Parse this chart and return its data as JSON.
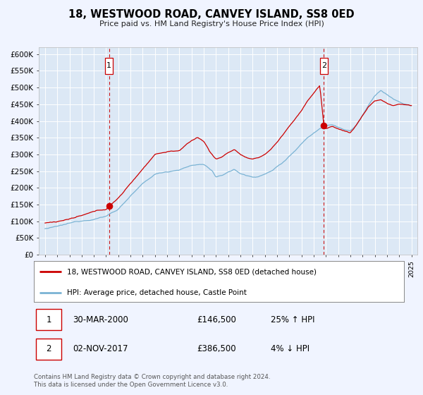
{
  "title": "18, WESTWOOD ROAD, CANVEY ISLAND, SS8 0ED",
  "subtitle": "Price paid vs. HM Land Registry's House Price Index (HPI)",
  "ylabel_ticks": [
    "£0",
    "£50K",
    "£100K",
    "£150K",
    "£200K",
    "£250K",
    "£300K",
    "£350K",
    "£400K",
    "£450K",
    "£500K",
    "£550K",
    "£600K"
  ],
  "ytick_values": [
    0,
    50000,
    100000,
    150000,
    200000,
    250000,
    300000,
    350000,
    400000,
    450000,
    500000,
    550000,
    600000
  ],
  "xlim": [
    1994.5,
    2025.5
  ],
  "ylim": [
    0,
    620000
  ],
  "sale1_x": 2000.25,
  "sale1_y": 146500,
  "sale1_label": "1",
  "sale1_date": "30-MAR-2000",
  "sale1_price": "£146,500",
  "sale1_hpi": "25% ↑ HPI",
  "sale2_x": 2017.83,
  "sale2_y": 386500,
  "sale2_label": "2",
  "sale2_date": "02-NOV-2017",
  "sale2_price": "£386,500",
  "sale2_hpi": "4% ↓ HPI",
  "hpi_color": "#7ab3d4",
  "price_color": "#cc0000",
  "dashed_line_color": "#cc0000",
  "background_color": "#f0f4ff",
  "plot_bg_color": "#dce8f5",
  "grid_color": "#ffffff",
  "legend_label_price": "18, WESTWOOD ROAD, CANVEY ISLAND, SS8 0ED (detached house)",
  "legend_label_hpi": "HPI: Average price, detached house, Castle Point",
  "footer_line1": "Contains HM Land Registry data © Crown copyright and database right 2024.",
  "footer_line2": "This data is licensed under the Open Government Licence v3.0."
}
